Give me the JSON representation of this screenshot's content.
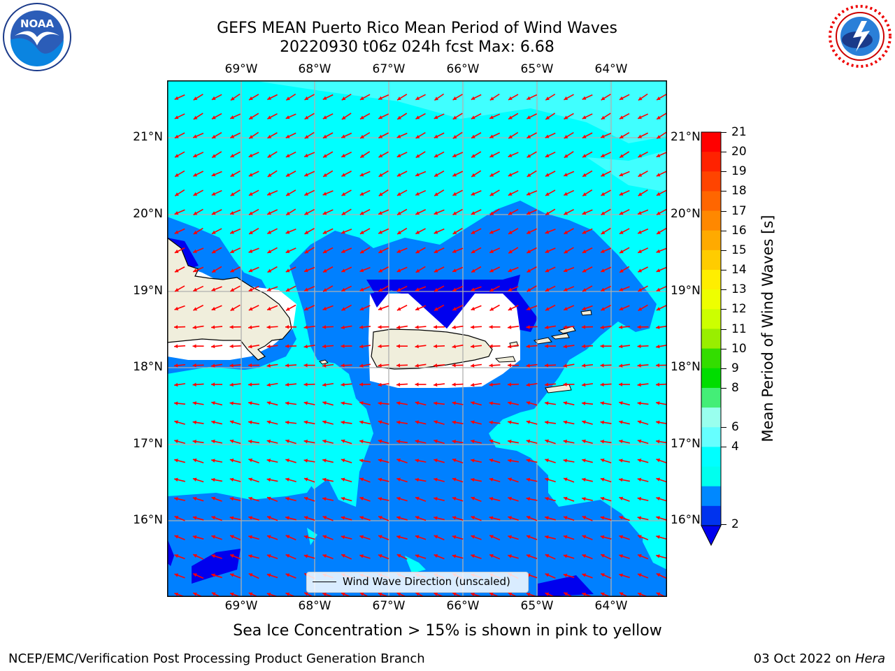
{
  "title_line1": "GEFS MEAN Puerto Rico Mean Period of Wind Waves",
  "title_line2": "20220930 t06z 024h fcst   Max: 6.68",
  "lon_labels": [
    "69°W",
    "68°W",
    "67°W",
    "66°W",
    "65°W",
    "64°W"
  ],
  "lat_labels": [
    "21°N",
    "20°N",
    "19°N",
    "18°N",
    "17°N",
    "16°N"
  ],
  "colorbar": {
    "label": "Mean Period of Wind Waves [s]",
    "ticks": [
      "21",
      "20",
      "19",
      "18",
      "17",
      "16",
      "15",
      "14",
      "13",
      "12",
      "11",
      "10",
      "9",
      "8",
      "6",
      "4",
      "2"
    ],
    "colors": [
      "#ff0000",
      "#ff2200",
      "#ff4400",
      "#ff6600",
      "#ff8800",
      "#ffaa00",
      "#ffcc00",
      "#ffee00",
      "#eeff00",
      "#ccff00",
      "#99ee00",
      "#33dd00",
      "#00dd00",
      "#44ee77",
      "#99ffee",
      "#66ffff",
      "#00ffff",
      "#00ffee",
      "#0088ff",
      "#0033ee"
    ]
  },
  "legend_label": "Wind Wave Direction (unscaled)",
  "subtitle": "Sea Ice Concentration > 15% is shown in pink to yellow",
  "footer_left": "NCEP/EMC/Verification Post Processing Product Generation Branch",
  "footer_right_date": "03 Oct 2022 on ",
  "footer_right_host": "Hera",
  "logo_left": "NOAA",
  "logo_right": "NATIONAL WEATHER SERVICE",
  "colors": {
    "cyan_field": "#00ffff",
    "blue_field": "#0080ff",
    "deep_blue": "#0000ee",
    "land": "#f0eedc",
    "arrow": "#ff0000",
    "grid": "#b0b0b0"
  }
}
